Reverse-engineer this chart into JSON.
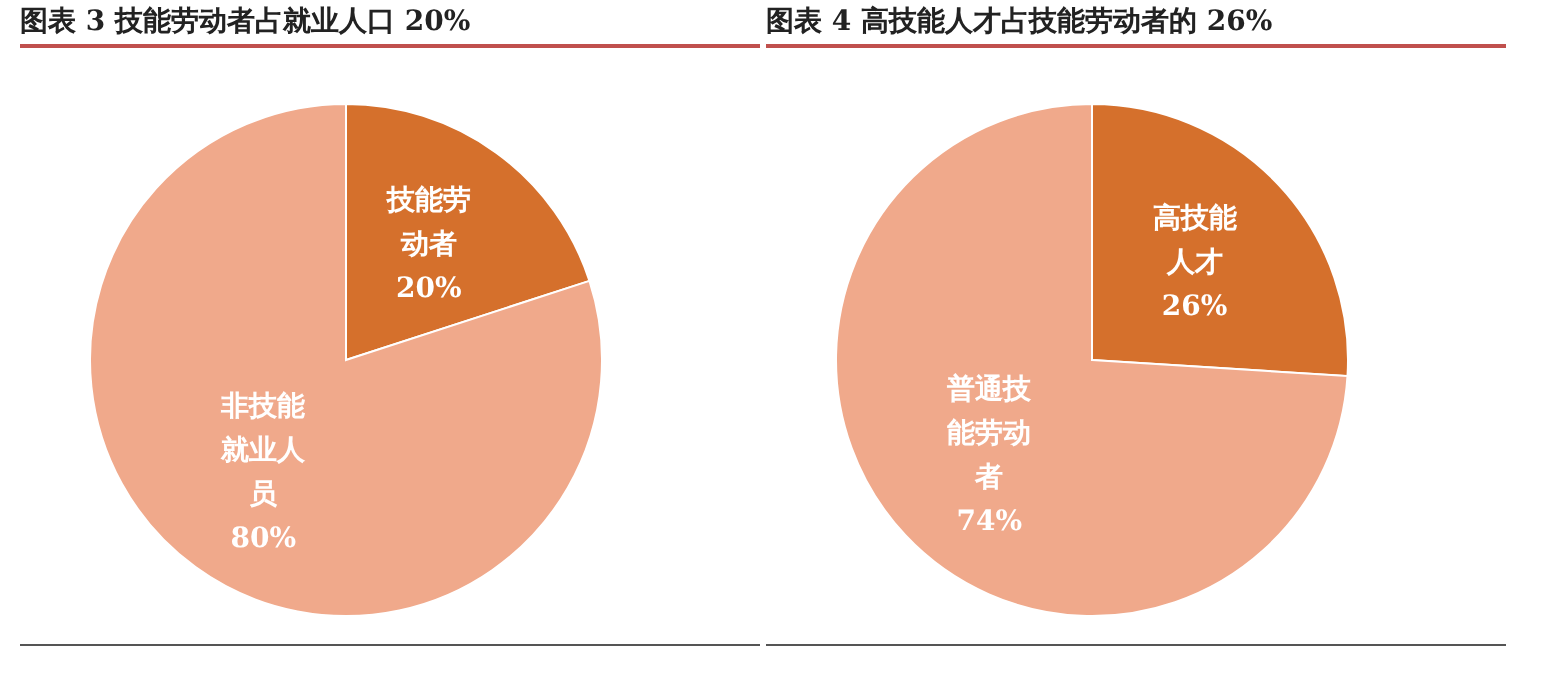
{
  "chart_data": [
    {
      "type": "pie",
      "title": "图表 3 技能劳动者占就业人口 20%",
      "categories": [
        "技能劳动者",
        "非技能就业人员"
      ],
      "values": [
        20,
        80
      ],
      "value_labels": [
        "20%",
        "80%"
      ],
      "colors": [
        "#d5702c",
        "#f0a98b"
      ]
    },
    {
      "type": "pie",
      "title": "图表 4 高技能人才占技能劳动者的 26%",
      "categories": [
        "高技能人才",
        "普通技能劳动者"
      ],
      "values": [
        26,
        74
      ],
      "value_labels": [
        "26%",
        "74%"
      ],
      "colors": [
        "#d5702c",
        "#f0a98b"
      ]
    }
  ]
}
